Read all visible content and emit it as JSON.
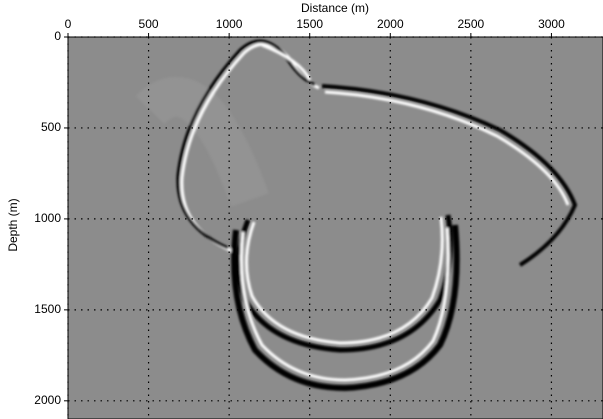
{
  "chart_data": {
    "type": "image",
    "x_label": "Distance (m)",
    "y_label": "Depth (m)",
    "xlim": [
      0,
      3320
    ],
    "xticks": [
      0,
      500,
      1000,
      1500,
      2000,
      2500,
      3000
    ],
    "ylim": [
      0,
      2100
    ],
    "yticks": [
      0,
      500,
      1000,
      1500,
      2000
    ],
    "y_inverted": true,
    "grid": true,
    "background": "#8c8c8c"
  }
}
